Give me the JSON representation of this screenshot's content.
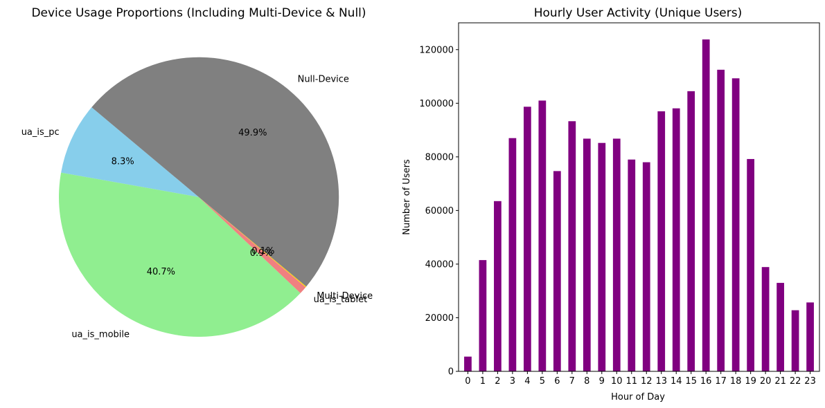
{
  "chart_data": [
    {
      "type": "pie",
      "title": "Device Usage Proportions (Including Multi-Device & Null)",
      "start_angle_deg": 140,
      "direction": "counterclockwise",
      "slices": [
        {
          "label": "ua_is_pc",
          "pct_label": "8.3%",
          "value": 8.3,
          "color": "#87CEEB"
        },
        {
          "label": "ua_is_mobile",
          "pct_label": "40.7%",
          "value": 40.7,
          "color": "#90EE90"
        },
        {
          "label": "ua_is_tablet",
          "pct_label": "0.9%",
          "value": 0.9,
          "color": "#F08080"
        },
        {
          "label": "Multi-Device",
          "pct_label": "0.1%",
          "value": 0.1,
          "color": "#FFD700"
        },
        {
          "label": "Null-Device",
          "pct_label": "49.9%",
          "value": 49.9,
          "color": "#808080"
        }
      ]
    },
    {
      "type": "bar",
      "title": "Hourly User Activity (Unique Users)",
      "xlabel": "Hour of Day",
      "ylabel": "Number of Users",
      "ylim": [
        0,
        130000
      ],
      "yticks": [
        0,
        20000,
        40000,
        60000,
        80000,
        100000,
        120000
      ],
      "color": "#800080",
      "categories": [
        "0",
        "1",
        "2",
        "3",
        "4",
        "5",
        "6",
        "7",
        "8",
        "9",
        "10",
        "11",
        "12",
        "13",
        "14",
        "15",
        "16",
        "17",
        "18",
        "19",
        "20",
        "21",
        "22",
        "23"
      ],
      "values": [
        5500,
        41500,
        63500,
        87000,
        98700,
        101000,
        74700,
        93300,
        86800,
        85200,
        86800,
        79000,
        78000,
        97000,
        98100,
        104500,
        123800,
        112500,
        109300,
        79200,
        38900,
        33000,
        22800,
        25700
      ]
    }
  ]
}
